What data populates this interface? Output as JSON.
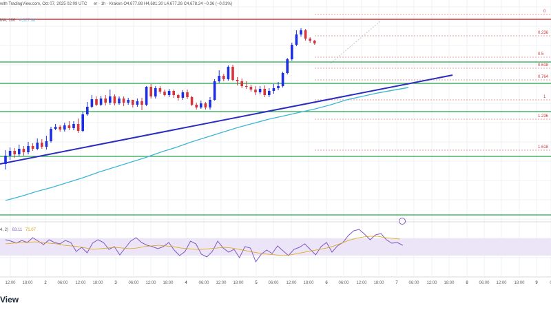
{
  "header": {
    "title_line": "with TradingView.com, Oct 07, 2025 02:09 UTC",
    "symbol_line": "er · 1h · Kraken  O4,677.88  H4,681.30  L4,677.26  C4,678.24  −0.36 (−0.01%)",
    "ma_label": "MA, 100",
    "ma_value": "4,627.98"
  },
  "rsi_header": {
    "label": "4, 2)",
    "value1": "63.11",
    "value2": "71.07"
  },
  "brand": "View",
  "colors": {
    "bull": "#1d2fe0",
    "bear": "#d2363c",
    "trendline": "#2b2dbf",
    "ma": "#3fb6d6",
    "support": "#22a64a",
    "resistance": "#d2363c",
    "fib": "#d2363c",
    "rsi": "#7e57c2",
    "rsi_ma": "#e0a400",
    "rsi_band": "#ece4f7"
  },
  "chart_data": {
    "type": "candlestick",
    "timeframe": "1h",
    "fib_labels": [
      "0",
      "0.236",
      "0.5",
      "0.618",
      "0.764",
      "1",
      "1.236",
      "1.618"
    ],
    "x_ticks": [
      "12:00",
      "18:00",
      "2",
      "06:00",
      "12:00",
      "18:00",
      "3",
      "06:00",
      "12:00",
      "18:00",
      "4",
      "06:00",
      "12:00",
      "18:00",
      "5",
      "06:00",
      "12:00",
      "18:00",
      "6",
      "06:00",
      "12:00",
      "18:00",
      "7",
      "06:00",
      "12:00",
      "18:00",
      "8",
      "06:00",
      "12:00",
      "18:00",
      "9",
      "0"
    ],
    "day_ticks": [
      "2",
      "3",
      "4",
      "5",
      "6",
      "7",
      "8",
      "9"
    ],
    "candles": [
      [
        238,
        226,
        246,
        218
      ],
      [
        226,
        219,
        232,
        214
      ],
      [
        219,
        224,
        229,
        215
      ],
      [
        224,
        216,
        227,
        210
      ],
      [
        216,
        221,
        226,
        212
      ],
      [
        221,
        212,
        224,
        206
      ],
      [
        212,
        216,
        219,
        208
      ],
      [
        216,
        207,
        218,
        201
      ],
      [
        207,
        213,
        216,
        202
      ],
      [
        213,
        205,
        217,
        197
      ],
      [
        205,
        187,
        207,
        184
      ],
      [
        187,
        184,
        189,
        180
      ],
      [
        184,
        188,
        191,
        182
      ],
      [
        188,
        182,
        191,
        178
      ],
      [
        182,
        186,
        189,
        176
      ],
      [
        186,
        180,
        189,
        176
      ],
      [
        180,
        190,
        193,
        172
      ],
      [
        190,
        166,
        192,
        162
      ],
      [
        166,
        155,
        168,
        148
      ],
      [
        155,
        144,
        157,
        138
      ],
      [
        144,
        152,
        154,
        140
      ],
      [
        152,
        143,
        154,
        139
      ],
      [
        143,
        149,
        153,
        138
      ],
      [
        149,
        140,
        152,
        130
      ],
      [
        140,
        150,
        153,
        137
      ],
      [
        150,
        143,
        152,
        140
      ],
      [
        143,
        149,
        154,
        140
      ],
      [
        149,
        145,
        152,
        142
      ],
      [
        145,
        152,
        156,
        150
      ],
      [
        152,
        147,
        155,
        143
      ],
      [
        147,
        152,
        160,
        142
      ],
      [
        152,
        126,
        154,
        125
      ],
      [
        126,
        140,
        143,
        122
      ],
      [
        140,
        128,
        143,
        125
      ],
      [
        128,
        133,
        136,
        125
      ],
      [
        133,
        138,
        140,
        130
      ],
      [
        138,
        132,
        141,
        129
      ],
      [
        132,
        138,
        142,
        130
      ],
      [
        138,
        142,
        146,
        136
      ],
      [
        142,
        134,
        145,
        131
      ],
      [
        134,
        141,
        144,
        130
      ],
      [
        141,
        152,
        154,
        139
      ],
      [
        152,
        156,
        159,
        149
      ],
      [
        156,
        150,
        158,
        146
      ],
      [
        150,
        156,
        159,
        148
      ],
      [
        156,
        145,
        159,
        141
      ],
      [
        145,
        118,
        146,
        115
      ],
      [
        118,
        110,
        120,
        102
      ],
      [
        110,
        115,
        118,
        107
      ],
      [
        115,
        97,
        117,
        95
      ],
      [
        97,
        116,
        118,
        94
      ],
      [
        116,
        118,
        124,
        112
      ],
      [
        118,
        125,
        128,
        114
      ],
      [
        125,
        126,
        129,
        118
      ],
      [
        126,
        130,
        133,
        123
      ],
      [
        130,
        134,
        138,
        125
      ],
      [
        134,
        129,
        137,
        125
      ],
      [
        129,
        138,
        141,
        124
      ],
      [
        138,
        132,
        141,
        128
      ],
      [
        132,
        128,
        136,
        122
      ],
      [
        128,
        125,
        131,
        119
      ],
      [
        125,
        106,
        127,
        104
      ],
      [
        106,
        86,
        108,
        84
      ],
      [
        86,
        65,
        88,
        62
      ],
      [
        65,
        50,
        67,
        44
      ],
      [
        50,
        44,
        53,
        41
      ],
      [
        44,
        56,
        59,
        42
      ],
      [
        56,
        59,
        62,
        54
      ],
      [
        59,
        63,
        65,
        58
      ]
    ],
    "candle_scale_note": "values are price levels on the chart's 1h scale; candles read as [open, close, high, low]",
    "ma100": [
      291,
      285,
      278,
      272,
      265,
      258,
      250,
      243,
      236,
      229,
      221,
      214,
      206,
      199,
      192,
      185,
      179,
      173,
      168,
      163,
      158,
      152,
      145,
      140,
      135,
      131,
      127
    ],
    "rsi": [
      348,
      350,
      353,
      349,
      352,
      345,
      350,
      355,
      348,
      352,
      354,
      349,
      352,
      365,
      359,
      367,
      353,
      348,
      352,
      362,
      358,
      370,
      360,
      350,
      345,
      352,
      356,
      358,
      361,
      358,
      352,
      363,
      371,
      365,
      350,
      354,
      369,
      373,
      365,
      350,
      360,
      366,
      362,
      374,
      358,
      360,
      380,
      369,
      363,
      368,
      357,
      364,
      371,
      362,
      359,
      354,
      362,
      370,
      358,
      352,
      366,
      357,
      352,
      342,
      335,
      333,
      340,
      348,
      341,
      339,
      348,
      353,
      352,
      356
    ],
    "rsi_ma": [
      354,
      353,
      352,
      352,
      351,
      352,
      353,
      354,
      356,
      357,
      358,
      360,
      362,
      361,
      360,
      359,
      360,
      361,
      360,
      358,
      357,
      356,
      357,
      358,
      360,
      361,
      362,
      362,
      361,
      360,
      359,
      360,
      362,
      364,
      366,
      368,
      369,
      370,
      371,
      370,
      368,
      366,
      364,
      362,
      360,
      357,
      353,
      349,
      346,
      344,
      343,
      343,
      345,
      346,
      347
    ],
    "rsi_bands": [
      [
        346,
        371
      ]
    ],
    "rsi_value": "63.11",
    "rsi_ma_value": "71.07"
  }
}
